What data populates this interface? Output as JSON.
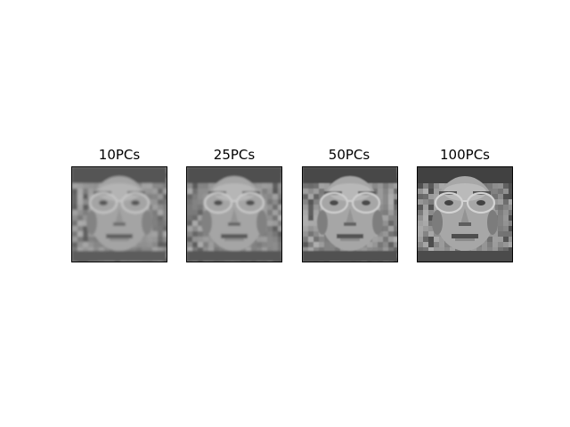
{
  "figure": {
    "panels": [
      {
        "title": "10PCs",
        "clarity": 0.25
      },
      {
        "title": "25PCs",
        "clarity": 0.45
      },
      {
        "title": "50PCs",
        "clarity": 0.7
      },
      {
        "title": "100PCs",
        "clarity": 0.95
      }
    ]
  },
  "colors": {
    "background": "#ffffff",
    "frame": "#000000"
  }
}
